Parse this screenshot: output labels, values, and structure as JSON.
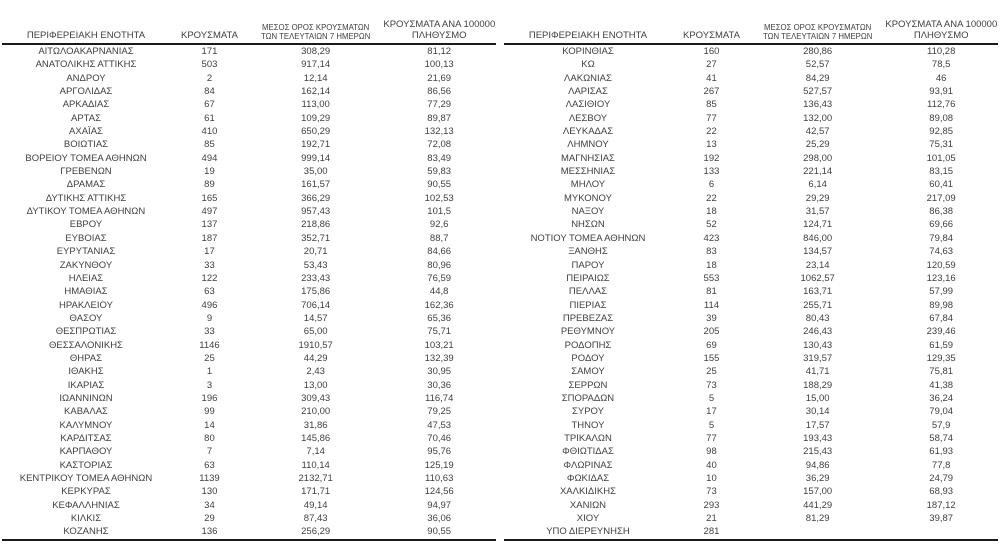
{
  "columns": {
    "region": "ΠΕΡΙΦΕΡΕΙΑΚΗ ΕΝΟΤΗΤΑ",
    "cases": "ΚΡΟΥΣΜΑΤΑ",
    "avg7_line1": "ΜΕΣΟΣ ΟΡΟΣ ΚΡΟΥΣΜΑΤΩΝ",
    "avg7_line2": "ΤΩΝ ΤΕΛΕΥΤΑΙΩΝ 7 ΗΜΕΡΩΝ",
    "per100k_line1": "ΚΡΟΥΣΜΑΤΑ ΑΝΑ 100000",
    "per100k_line2": "ΠΛΗΘΥΣΜΟ"
  },
  "colors": {
    "text": "#3f3f3f",
    "rule": "#1a1a1a",
    "background": "#ffffff"
  },
  "left_rows": [
    [
      "ΑΙΤΩΛΟΑΚΑΡΝΑΝΙΑΣ",
      "171",
      "308,29",
      "81,12"
    ],
    [
      "ΑΝΑΤΟΛΙΚΗΣ ΑΤΤΙΚΗΣ",
      "503",
      "917,14",
      "100,13"
    ],
    [
      "ΑΝΔΡΟΥ",
      "2",
      "12,14",
      "21,69"
    ],
    [
      "ΑΡΓΟΛΙΔΑΣ",
      "84",
      "162,14",
      "86,56"
    ],
    [
      "ΑΡΚΑΔΙΑΣ",
      "67",
      "113,00",
      "77,29"
    ],
    [
      "ΑΡΤΑΣ",
      "61",
      "109,29",
      "89,87"
    ],
    [
      "ΑΧΑΪΑΣ",
      "410",
      "650,29",
      "132,13"
    ],
    [
      "ΒΟΙΩΤΙΑΣ",
      "85",
      "192,71",
      "72,08"
    ],
    [
      "ΒΟΡΕΙΟΥ ΤΟΜΕΑ ΑΘΗΝΩΝ",
      "494",
      "999,14",
      "83,49"
    ],
    [
      "ΓΡΕΒΕΝΩΝ",
      "19",
      "35,00",
      "59,83"
    ],
    [
      "ΔΡΑΜΑΣ",
      "89",
      "161,57",
      "90,55"
    ],
    [
      "ΔΥΤΙΚΗΣ ΑΤΤΙΚΗΣ",
      "165",
      "366,29",
      "102,53"
    ],
    [
      "ΔΥΤΙΚΟΥ ΤΟΜΕΑ ΑΘΗΝΩΝ",
      "497",
      "957,43",
      "101,5"
    ],
    [
      "ΕΒΡΟΥ",
      "137",
      "218,86",
      "92,6"
    ],
    [
      "ΕΥΒΟΙΑΣ",
      "187",
      "352,71",
      "88,7"
    ],
    [
      "ΕΥΡΥΤΑΝΙΑΣ",
      "17",
      "20,71",
      "84,66"
    ],
    [
      "ΖΑΚΥΝΘΟΥ",
      "33",
      "53,43",
      "80,96"
    ],
    [
      "ΗΛΕΙΑΣ",
      "122",
      "233,43",
      "76,59"
    ],
    [
      "ΗΜΑΘΙΑΣ",
      "63",
      "175,86",
      "44,8"
    ],
    [
      "ΗΡΑΚΛΕΙΟΥ",
      "496",
      "706,14",
      "162,36"
    ],
    [
      "ΘΑΣΟΥ",
      "9",
      "14,57",
      "65,36"
    ],
    [
      "ΘΕΣΠΡΩΤΙΑΣ",
      "33",
      "65,00",
      "75,71"
    ],
    [
      "ΘΕΣΣΑΛΟΝΙΚΗΣ",
      "1146",
      "1910,57",
      "103,21"
    ],
    [
      "ΘΗΡΑΣ",
      "25",
      "44,29",
      "132,39"
    ],
    [
      "ΙΘΑΚΗΣ",
      "1",
      "2,43",
      "30,95"
    ],
    [
      "ΙΚΑΡΙΑΣ",
      "3",
      "13,00",
      "30,36"
    ],
    [
      "ΙΩΑΝΝΙΝΩΝ",
      "196",
      "309,43",
      "116,74"
    ],
    [
      "ΚΑΒΑΛΑΣ",
      "99",
      "210,00",
      "79,25"
    ],
    [
      "ΚΑΛΥΜΝΟΥ",
      "14",
      "31,86",
      "47,53"
    ],
    [
      "ΚΑΡΔΙΤΣΑΣ",
      "80",
      "145,86",
      "70,46"
    ],
    [
      "ΚΑΡΠΑΘΟΥ",
      "7",
      "7,14",
      "95,76"
    ],
    [
      "ΚΑΣΤΟΡΙΑΣ",
      "63",
      "110,14",
      "125,19"
    ],
    [
      "ΚΕΝΤΡΙΚΟΥ ΤΟΜΕΑ ΑΘΗΝΩΝ",
      "1139",
      "2132,71",
      "110,63"
    ],
    [
      "ΚΕΡΚΥΡΑΣ",
      "130",
      "171,71",
      "124,56"
    ],
    [
      "ΚΕΦΑΛΛΗΝΙΑΣ",
      "34",
      "49,14",
      "94,97"
    ],
    [
      "ΚΙΛΚΙΣ",
      "29",
      "87,43",
      "36,06"
    ],
    [
      "ΚΟΖΑΝΗΣ",
      "136",
      "256,29",
      "90,55"
    ]
  ],
  "right_rows": [
    [
      "ΚΟΡΙΝΘΙΑΣ",
      "160",
      "280,86",
      "110,28"
    ],
    [
      "ΚΩ",
      "27",
      "52,57",
      "78,5"
    ],
    [
      "ΛΑΚΩΝΙΑΣ",
      "41",
      "84,29",
      "46"
    ],
    [
      "ΛΑΡΙΣΑΣ",
      "267",
      "527,57",
      "93,91"
    ],
    [
      "ΛΑΣΙΘΙΟΥ",
      "85",
      "136,43",
      "112,76"
    ],
    [
      "ΛΕΣΒΟΥ",
      "77",
      "132,00",
      "89,08"
    ],
    [
      "ΛΕΥΚΑΔΑΣ",
      "22",
      "42,57",
      "92,85"
    ],
    [
      "ΛΗΜΝΟΥ",
      "13",
      "25,29",
      "75,31"
    ],
    [
      "ΜΑΓΝΗΣΙΑΣ",
      "192",
      "298,00",
      "101,05"
    ],
    [
      "ΜΕΣΣΗΝΙΑΣ",
      "133",
      "221,14",
      "83,15"
    ],
    [
      "ΜΗΛΟΥ",
      "6",
      "6,14",
      "60,41"
    ],
    [
      "ΜΥΚΟΝΟΥ",
      "22",
      "29,29",
      "217,09"
    ],
    [
      "ΝΑΞΟΥ",
      "18",
      "31,57",
      "86,38"
    ],
    [
      "ΝΗΣΩΝ",
      "52",
      "124,71",
      "69,66"
    ],
    [
      "ΝΟΤΙΟΥ ΤΟΜΕΑ ΑΘΗΝΩΝ",
      "423",
      "846,00",
      "79,84"
    ],
    [
      "ΞΑΝΘΗΣ",
      "83",
      "134,57",
      "74,63"
    ],
    [
      "ΠΑΡΟΥ",
      "18",
      "23,14",
      "120,59"
    ],
    [
      "ΠΕΙΡΑΙΩΣ",
      "553",
      "1062,57",
      "123,16"
    ],
    [
      "ΠΕΛΛΑΣ",
      "81",
      "163,71",
      "57,99"
    ],
    [
      "ΠΙΕΡΙΑΣ",
      "114",
      "255,71",
      "89,98"
    ],
    [
      "ΠΡΕΒΕΖΑΣ",
      "39",
      "80,43",
      "67,84"
    ],
    [
      "ΡΕΘΥΜΝΟΥ",
      "205",
      "246,43",
      "239,46"
    ],
    [
      "ΡΟΔΟΠΗΣ",
      "69",
      "130,43",
      "61,59"
    ],
    [
      "ΡΟΔΟΥ",
      "155",
      "319,57",
      "129,35"
    ],
    [
      "ΣΑΜΟΥ",
      "25",
      "41,71",
      "75,81"
    ],
    [
      "ΣΕΡΡΩΝ",
      "73",
      "188,29",
      "41,38"
    ],
    [
      "ΣΠΟΡΑΔΩΝ",
      "5",
      "15,00",
      "36,24"
    ],
    [
      "ΣΥΡΟΥ",
      "17",
      "30,14",
      "79,04"
    ],
    [
      "ΤΗΝΟΥ",
      "5",
      "17,57",
      "57,9"
    ],
    [
      "ΤΡΙΚΑΛΩΝ",
      "77",
      "193,43",
      "58,74"
    ],
    [
      "ΦΘΙΩΤΙΔΑΣ",
      "98",
      "215,43",
      "61,93"
    ],
    [
      "ΦΛΩΡΙΝΑΣ",
      "40",
      "94,86",
      "77,8"
    ],
    [
      "ΦΩΚΙΔΑΣ",
      "10",
      "36,29",
      "24,79"
    ],
    [
      "ΧΑΛΚΙΔΙΚΗΣ",
      "73",
      "157,00",
      "68,93"
    ],
    [
      "ΧΑΝΙΩΝ",
      "293",
      "441,29",
      "187,12"
    ],
    [
      "ΧΙΟΥ",
      "21",
      "81,29",
      "39,87"
    ],
    [
      "ΥΠΟ ΔΙΕΡΕΥΝΗΣΗ",
      "281",
      "",
      ""
    ]
  ]
}
